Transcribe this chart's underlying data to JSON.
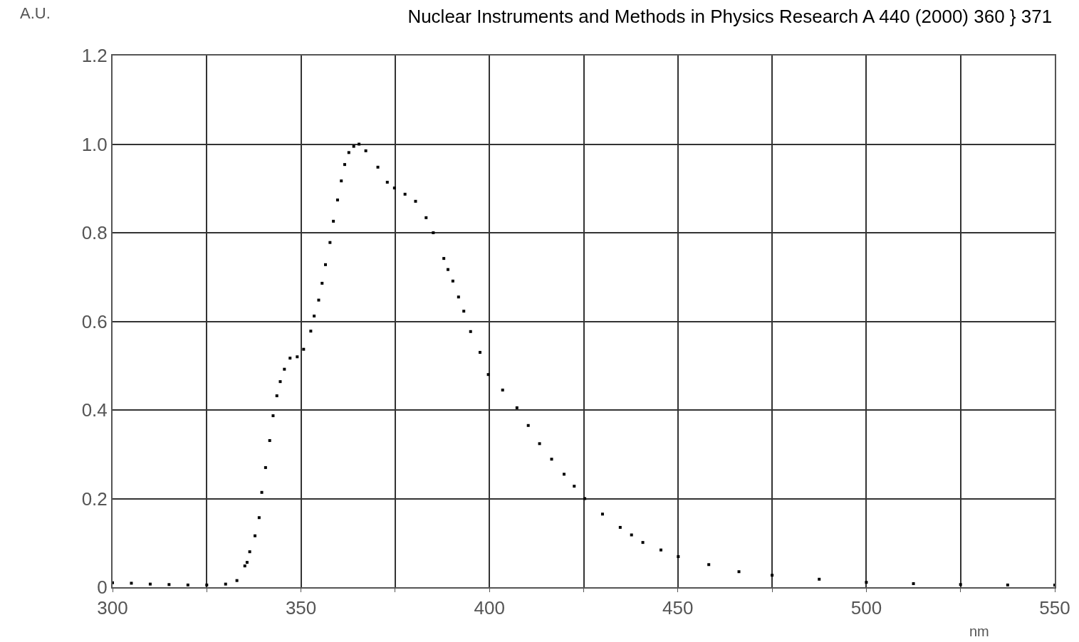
{
  "chart_data": {
    "type": "scatter",
    "title": "Nuclear Instruments and Methods in Physics Research A 440 (2000) 360 } 371",
    "xlabel": "nm",
    "ylabel": "A.U.",
    "series": [
      {
        "color": "#000000",
        "x": [
          300,
          305,
          310,
          315,
          320,
          325,
          330,
          333,
          335.1,
          335.7,
          336.4,
          337.8,
          338.9,
          339.6,
          340.6,
          341.7,
          342.6,
          343.6,
          344.5,
          345.6,
          347.1,
          349,
          350.7,
          352.6,
          353.5,
          354.7,
          355.6,
          356.5,
          357.7,
          358.6,
          359.7,
          360.7,
          361.6,
          362.7,
          364,
          365.4,
          367.2,
          370.4,
          372.9,
          374.8,
          377.6,
          380.4,
          383.2,
          385.1,
          387.9,
          389,
          390.3,
          391.8,
          393.2,
          395,
          397.5,
          399.7,
          403.5,
          407.3,
          410.3,
          413.3,
          416.5,
          419.8,
          422.5,
          425.3,
          430,
          434.7,
          437.7,
          440.7,
          445.5,
          450.1,
          458.2,
          466.2,
          475,
          487.5,
          500,
          512.5,
          525,
          537.5,
          550
        ],
        "values": [
          0.01,
          0.009,
          0.007,
          0.006,
          0.005,
          0.005,
          0.007,
          0.015,
          0.048,
          0.056,
          0.08,
          0.116,
          0.157,
          0.214,
          0.27,
          0.331,
          0.387,
          0.432,
          0.464,
          0.492,
          0.517,
          0.52,
          0.537,
          0.578,
          0.612,
          0.648,
          0.686,
          0.728,
          0.778,
          0.826,
          0.874,
          0.917,
          0.954,
          0.981,
          0.995,
          1.0,
          0.985,
          0.948,
          0.914,
          0.901,
          0.887,
          0.871,
          0.834,
          0.8,
          0.742,
          0.717,
          0.691,
          0.655,
          0.623,
          0.577,
          0.53,
          0.48,
          0.445,
          0.405,
          0.365,
          0.324,
          0.289,
          0.255,
          0.228,
          0.2,
          0.165,
          0.135,
          0.118,
          0.101,
          0.084,
          0.069,
          0.051,
          0.035,
          0.027,
          0.018,
          0.011,
          0.008,
          0.006,
          0.005,
          0.005
        ]
      }
    ],
    "marker": "square",
    "xlim": [
      300,
      550
    ],
    "xticks": [
      300,
      {
        "value": 325,
        "label": null
      },
      350,
      {
        "value": 375,
        "label": null
      },
      400,
      {
        "value": 425,
        "label": null
      },
      450,
      {
        "value": 475,
        "label": null
      },
      500,
      {
        "value": 525,
        "label": null
      },
      550
    ],
    "ylim": [
      0,
      1.2
    ],
    "yticks": [
      0,
      0.2,
      0.4,
      0.6,
      0.8,
      {
        "value": 1,
        "label": "1.0"
      },
      1.2
    ],
    "grid": true
  }
}
